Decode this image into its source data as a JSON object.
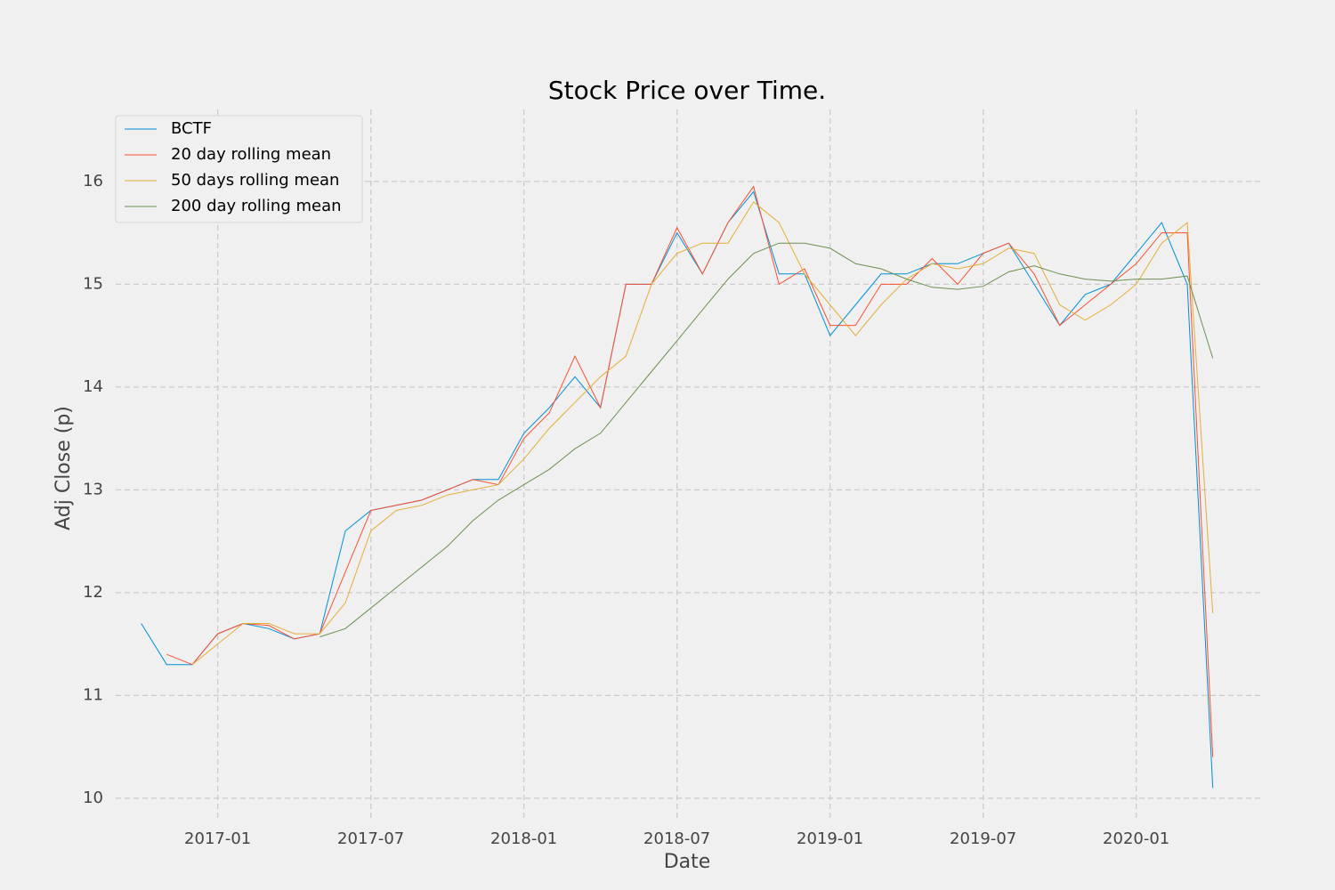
{
  "chart_data": {
    "type": "line",
    "title": "Stock Price over Time.",
    "xlabel": "Date",
    "ylabel": "Adj Close (p)",
    "x": [
      "2016-10",
      "2016-11",
      "2016-12",
      "2017-01",
      "2017-02",
      "2017-03",
      "2017-04",
      "2017-05",
      "2017-06",
      "2017-07",
      "2017-08",
      "2017-09",
      "2017-10",
      "2017-11",
      "2017-12",
      "2018-01",
      "2018-02",
      "2018-03",
      "2018-04",
      "2018-05",
      "2018-06",
      "2018-07",
      "2018-08",
      "2018-09",
      "2018-10",
      "2018-11",
      "2018-12",
      "2019-01",
      "2019-02",
      "2019-03",
      "2019-04",
      "2019-05",
      "2019-06",
      "2019-07",
      "2019-08",
      "2019-09",
      "2019-10",
      "2019-11",
      "2019-12",
      "2020-01",
      "2020-02",
      "2020-03",
      "2020-04"
    ],
    "series": [
      {
        "name": "BCTF",
        "color": "#008fd5",
        "values": [
          11.7,
          11.3,
          11.3,
          11.6,
          11.7,
          11.65,
          11.55,
          11.6,
          12.6,
          12.8,
          12.85,
          12.9,
          13.0,
          13.1,
          13.1,
          13.55,
          13.8,
          14.1,
          13.8,
          15.0,
          15.0,
          15.5,
          15.1,
          15.6,
          15.9,
          15.1,
          15.1,
          14.5,
          14.8,
          15.1,
          15.1,
          15.2,
          15.2,
          15.3,
          15.4,
          15.0,
          14.6,
          14.9,
          15.0,
          15.3,
          15.6,
          15.0,
          10.1
        ]
      },
      {
        "name": "20 day rolling mean",
        "color": "#fc4f30",
        "values": [
          null,
          11.4,
          11.3,
          11.6,
          11.7,
          11.68,
          11.55,
          11.6,
          12.2,
          12.8,
          12.85,
          12.9,
          13.0,
          13.1,
          13.05,
          13.5,
          13.75,
          14.3,
          13.8,
          15.0,
          15.0,
          15.55,
          15.1,
          15.6,
          15.95,
          15.0,
          15.15,
          14.6,
          14.6,
          15.0,
          15.0,
          15.25,
          15.0,
          15.3,
          15.4,
          15.1,
          14.6,
          14.8,
          15.0,
          15.2,
          15.5,
          15.5,
          10.4
        ]
      },
      {
        "name": "50 days rolling mean",
        "color": "#e5ae38",
        "values": [
          null,
          null,
          11.3,
          11.5,
          11.7,
          11.7,
          11.6,
          11.6,
          11.9,
          12.6,
          12.8,
          12.85,
          12.95,
          13.0,
          13.05,
          13.3,
          13.6,
          13.85,
          14.1,
          14.3,
          15.0,
          15.3,
          15.4,
          15.4,
          15.8,
          15.6,
          15.1,
          14.8,
          14.5,
          14.8,
          15.05,
          15.2,
          15.15,
          15.2,
          15.35,
          15.3,
          14.8,
          14.65,
          14.8,
          15.0,
          15.4,
          15.6,
          11.8
        ]
      },
      {
        "name": "200 day rolling mean",
        "color": "#6d904f",
        "values": [
          null,
          null,
          null,
          null,
          null,
          null,
          null,
          11.57,
          11.65,
          11.85,
          12.05,
          12.25,
          12.45,
          12.7,
          12.9,
          13.05,
          13.2,
          13.4,
          13.55,
          13.85,
          14.15,
          14.45,
          14.75,
          15.05,
          15.3,
          15.4,
          15.4,
          15.35,
          15.2,
          15.15,
          15.05,
          14.97,
          14.95,
          14.98,
          15.12,
          15.18,
          15.1,
          15.05,
          15.03,
          15.05,
          15.05,
          15.08,
          14.28
        ]
      }
    ],
    "xlim": [
      "2016-09",
      "2020-06"
    ],
    "xticks": [
      "2017-01",
      "2017-07",
      "2018-01",
      "2018-07",
      "2019-01",
      "2019-07",
      "2020-01"
    ],
    "ylim": [
      9.8,
      16.7
    ],
    "yticks": [
      10,
      11,
      12,
      13,
      14,
      15,
      16
    ],
    "grid": true,
    "legend": "upper-left"
  }
}
